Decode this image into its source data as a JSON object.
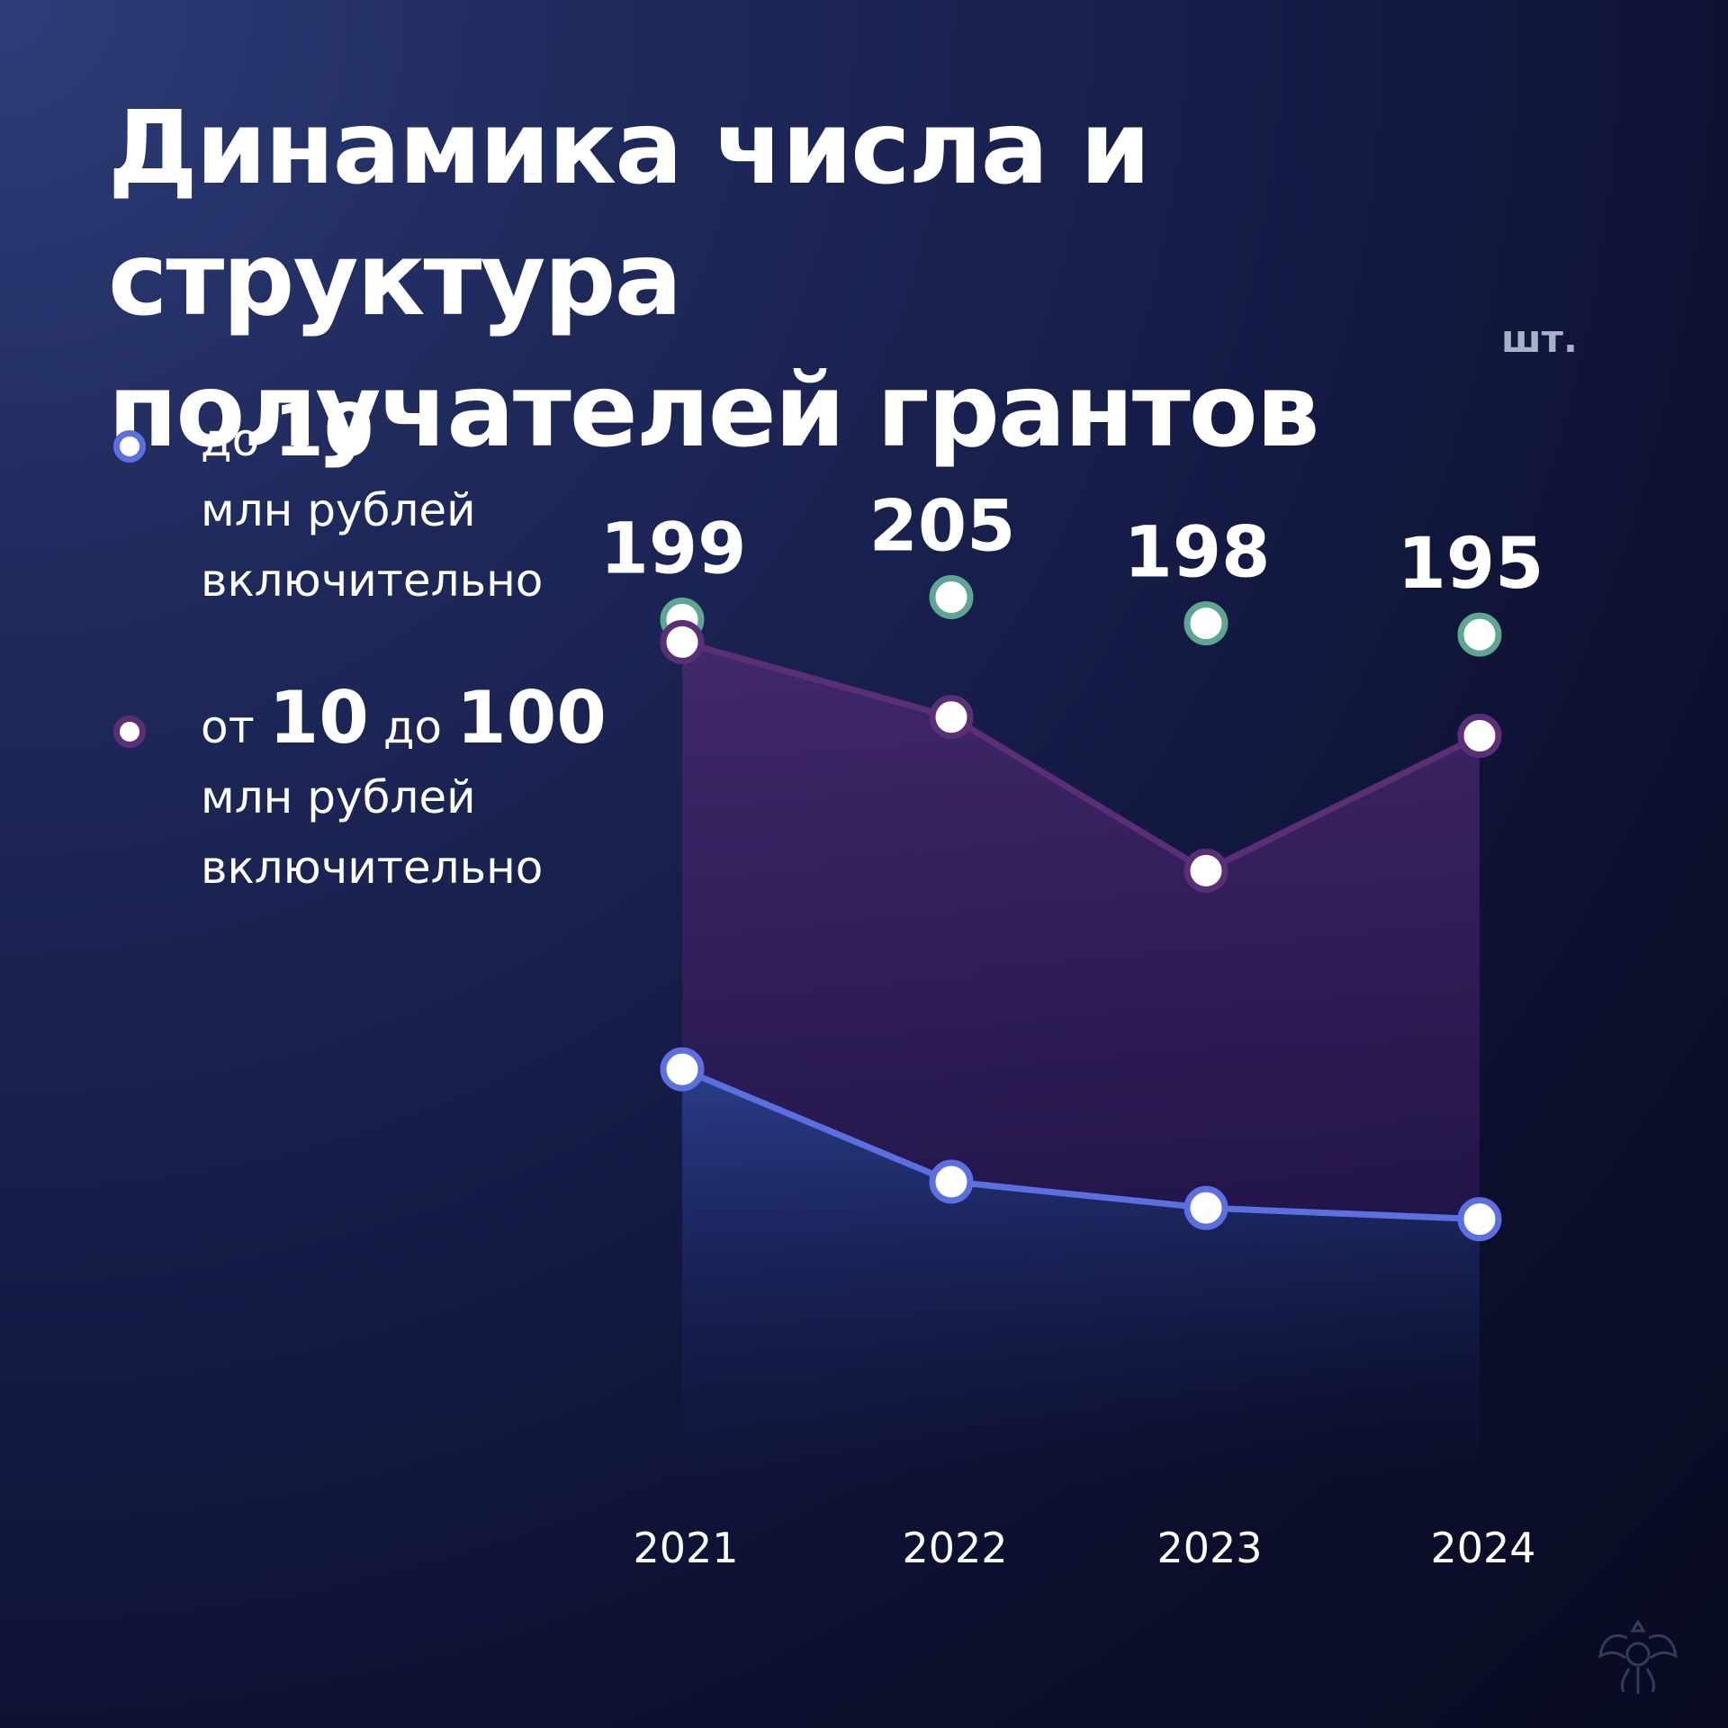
{
  "title": {
    "line1": "Динамика числа и структура",
    "line2": "получателей грантов"
  },
  "unit": "шт.",
  "legend": [
    {
      "prefix": "до",
      "from": "10",
      "mid": "",
      "to": "",
      "line2": "млн рублей",
      "line3": "включительно",
      "color": "#5b6fe0"
    },
    {
      "prefix": "от",
      "from": "10",
      "mid": "до",
      "to": "100",
      "line2": "млн рублей",
      "line3": "включительно",
      "color": "#5a2f78"
    }
  ],
  "chart_data": {
    "type": "line",
    "categories": [
      "2021",
      "2022",
      "2023",
      "2024"
    ],
    "totals": [
      199,
      205,
      198,
      195
    ],
    "series": [
      {
        "values": [
          79,
          49,
          42,
          39
        ],
        "color": "#5b6fe0"
      },
      {
        "values": [
          193,
          173,
          132,
          168
        ],
        "color": "#5a2f78"
      }
    ],
    "totals_color": "#5fa593",
    "ylim": [
      0,
      220
    ],
    "grid": false
  },
  "watermark": "coat-of-arms-emblem"
}
